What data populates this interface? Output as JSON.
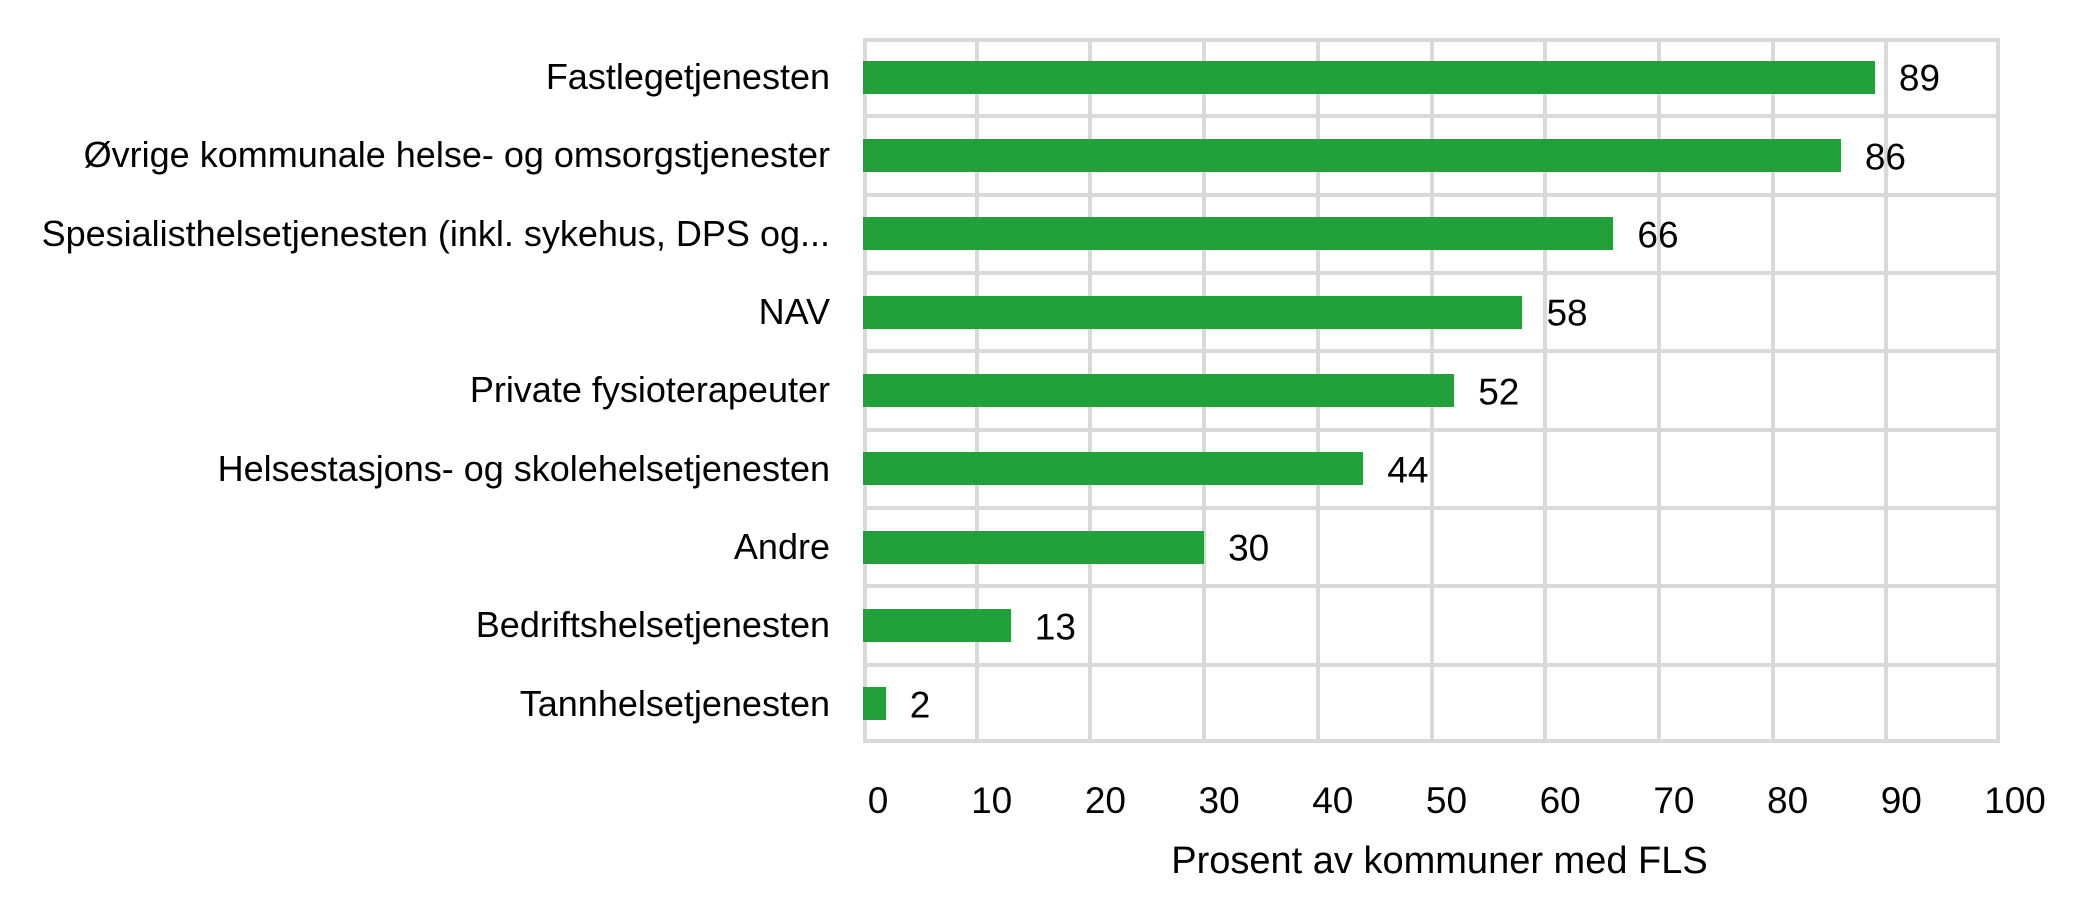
{
  "chart_data": {
    "type": "bar",
    "orientation": "horizontal",
    "title": "",
    "categories": [
      "Fastlegetjenesten",
      "Øvrige kommunale helse- og omsorgstjenester",
      "Spesialisthelsetjenesten (inkl. sykehus, DPS og...",
      "NAV",
      "Private fysioterapeuter",
      "Helsestasjons- og skolehelsetjenesten",
      "Andre",
      "Bedriftshelsetjenesten",
      "Tannhelsetjenesten"
    ],
    "values": [
      89,
      86,
      66,
      58,
      52,
      44,
      30,
      13,
      2
    ],
    "data_labels_shown": true,
    "xlabel": "Prosent av kommuner med FLS",
    "ylabel": "",
    "xlim": [
      0,
      100
    ],
    "xticks": [
      0,
      10,
      20,
      30,
      40,
      50,
      60,
      70,
      80,
      90,
      100
    ],
    "grid": "on",
    "legend": "none",
    "bar_color": "#22A03A",
    "gridline_color": "#D9D9D9",
    "text_color": "#000000",
    "background_color": "#FFFFFF"
  }
}
